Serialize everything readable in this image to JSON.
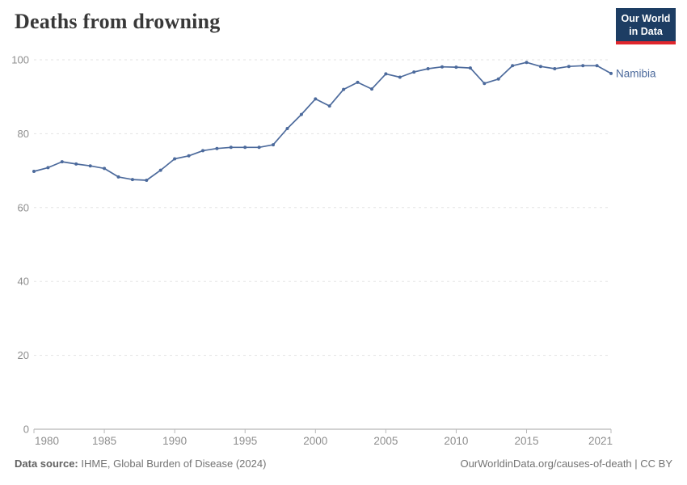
{
  "header": {
    "title": "Deaths from drowning",
    "logo": {
      "line1": "Our World",
      "line2": "in Data"
    }
  },
  "chart_data": {
    "type": "line",
    "title": "Deaths from drowning",
    "xlabel": "",
    "ylabel": "",
    "xlim": [
      1980,
      2021
    ],
    "ylim": [
      0,
      100
    ],
    "yticks": [
      0,
      20,
      40,
      60,
      80,
      100
    ],
    "xticks": [
      1980,
      1985,
      1990,
      1995,
      2000,
      2005,
      2010,
      2015,
      2021
    ],
    "grid": true,
    "legend_position": "end-of-line-label",
    "series": [
      {
        "name": "Namibia",
        "color": "#4c6a9c",
        "x": [
          1980,
          1981,
          1982,
          1983,
          1984,
          1985,
          1986,
          1987,
          1988,
          1989,
          1990,
          1991,
          1992,
          1993,
          1994,
          1995,
          1996,
          1997,
          1998,
          1999,
          2000,
          2001,
          2002,
          2003,
          2004,
          2005,
          2006,
          2007,
          2008,
          2009,
          2010,
          2011,
          2012,
          2013,
          2014,
          2015,
          2016,
          2017,
          2018,
          2019,
          2020,
          2021
        ],
        "values": [
          69.8,
          70.8,
          72.4,
          71.8,
          71.3,
          70.6,
          68.3,
          67.6,
          67.4,
          70.1,
          73.2,
          74.0,
          75.4,
          76.0,
          76.3,
          76.3,
          76.3,
          77.0,
          81.4,
          85.2,
          89.4,
          87.5,
          92.0,
          93.9,
          92.1,
          96.2,
          95.3,
          96.7,
          97.6,
          98.1,
          98.0,
          97.8,
          93.6,
          94.8,
          98.4,
          99.3,
          98.2,
          97.6,
          98.2,
          98.4,
          98.4,
          96.3
        ]
      }
    ]
  },
  "footer": {
    "source_label": "Data source:",
    "source_text": "IHME, Global Burden of Disease (2024)",
    "right_text": "OurWorldinData.org/causes-of-death | CC BY"
  },
  "colors": {
    "accent": "#4c6a9c",
    "grid": "#e3e3e3",
    "axis": "#a5a5a5",
    "tick": "#b8b8b8",
    "tick_label": "#8e8e8e",
    "logo_bg": "#1d3d63",
    "logo_red": "#e0262c",
    "title_text": "#383838",
    "footer_text": "#737373"
  }
}
